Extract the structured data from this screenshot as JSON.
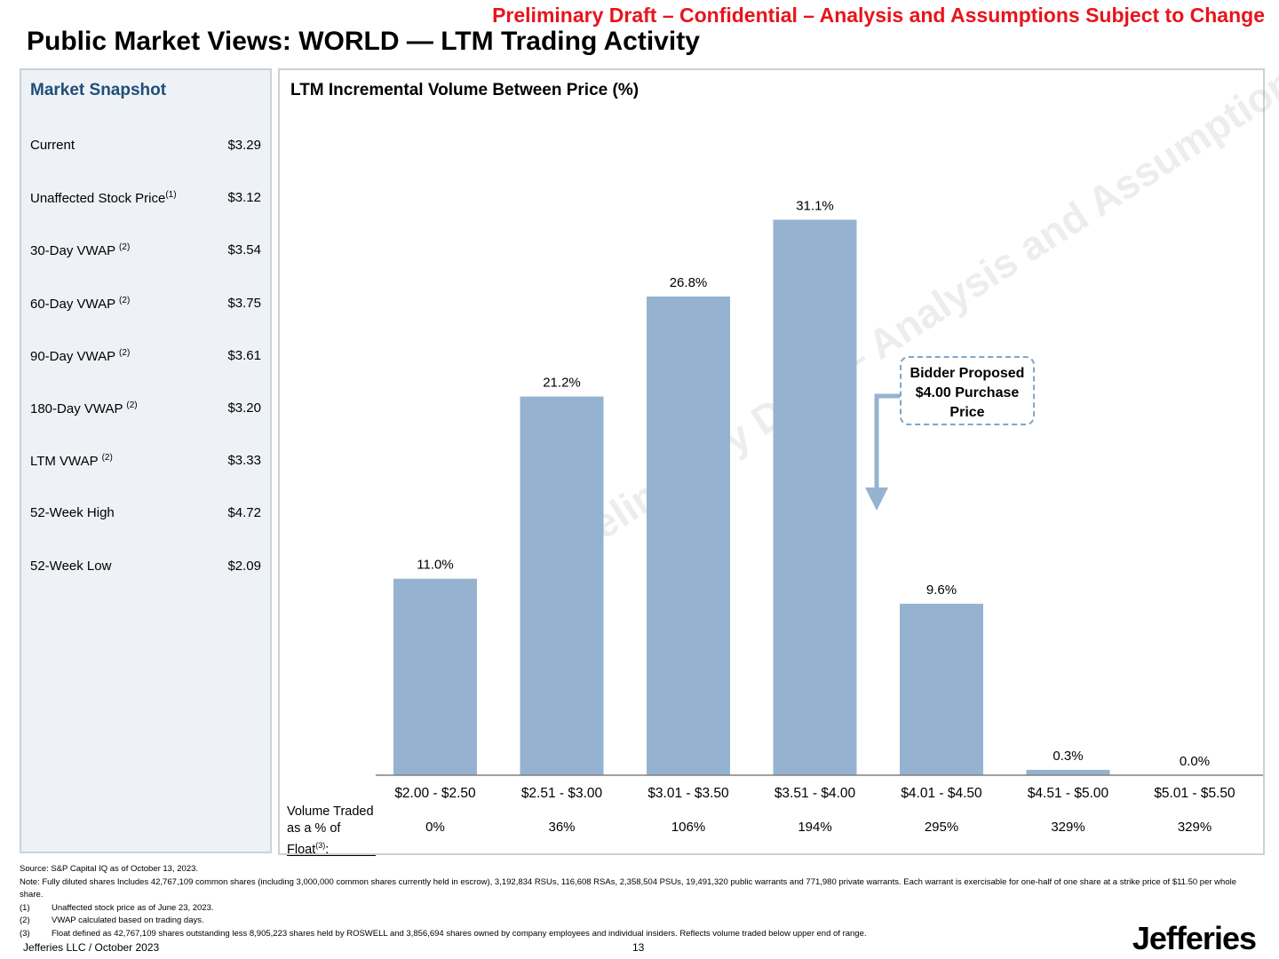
{
  "header": {
    "draft_banner": "Preliminary Draft – Confidential – Analysis and Assumptions Subject to Change",
    "title": "Public Market Views: WORLD — LTM Trading Activity"
  },
  "snapshot": {
    "title": "Market Snapshot",
    "rows": [
      {
        "label": "Current",
        "sup": "",
        "value": "$3.29"
      },
      {
        "label": "Unaffected Stock Price",
        "sup": "(1)",
        "value": "$3.12"
      },
      {
        "label": "30-Day VWAP ",
        "sup": "(2)",
        "value": "$3.54"
      },
      {
        "label": "60-Day VWAP ",
        "sup": "(2)",
        "value": "$3.75"
      },
      {
        "label": "90-Day VWAP ",
        "sup": "(2)",
        "value": "$3.61"
      },
      {
        "label": "180-Day VWAP ",
        "sup": "(2)",
        "value": "$3.20"
      },
      {
        "label": "LTM VWAP ",
        "sup": "(2)",
        "value": "$3.33"
      },
      {
        "label": "52-Week High",
        "sup": "",
        "value": "$4.72"
      },
      {
        "label": "52-Week Low",
        "sup": "",
        "value": "$2.09"
      }
    ]
  },
  "chart_data": {
    "type": "bar",
    "title": "LTM Incremental Volume Between Price (%)",
    "categories": [
      "$2.00 - $2.50",
      "$2.51 - $3.00",
      "$3.01 - $3.50",
      "$3.51 - $4.00",
      "$4.01 - $4.50",
      "$4.51 - $5.00",
      "$5.01 - $5.50"
    ],
    "values": [
      11.0,
      21.2,
      26.8,
      31.1,
      9.6,
      0.3,
      0.0
    ],
    "data_labels": [
      "11.0%",
      "21.2%",
      "26.8%",
      "31.1%",
      "9.6%",
      "0.3%",
      "0.0%"
    ],
    "ylim": [
      0,
      35
    ],
    "xlabel": "",
    "ylabel": "",
    "bar_color": "#95b3d0",
    "secondary_row": {
      "label": "Volume Traded as a % of Float",
      "label_sup": "(3)",
      "label_suffix": ":",
      "values": [
        "0%",
        "36%",
        "106%",
        "194%",
        "295%",
        "329%",
        "329%"
      ]
    },
    "annotation": {
      "line1": "Bidder Proposed",
      "line2": "$4.00 Purchase",
      "line3": "Price"
    }
  },
  "footnotes": {
    "source": "Source: S&P Capital IQ as of October 13, 2023.",
    "note": "Note: Fully diluted shares Includes 42,767,109 common shares (including 3,000,000 common shares currently held in escrow), 3,192,834 RSUs, 116,608 RSAs, 2,358,504 PSUs, 19,491,320 public warrants and 771,980 private warrants. Each warrant is exercisable for one-half of one share at a strike price of $11.50 per whole share.",
    "items": [
      {
        "num": "(1)",
        "text": "Unaffected stock price as of June 23, 2023."
      },
      {
        "num": "(2)",
        "text": "VWAP calculated based on trading days."
      },
      {
        "num": "(3)",
        "text": "Float defined as 42,767,109 shares outstanding less 8,905,223 shares held by ROSWELL and 3,856,694 shares owned by company employees and individual insiders. Reflects volume traded below upper end of range."
      }
    ]
  },
  "footer": {
    "company": "Jefferies LLC  /  October 2023",
    "page": "13",
    "logo": "Jefferies"
  },
  "watermark": "Preliminary Draft – Analysis and Assumptions Subject to Refinement/Change",
  "colors": {
    "banner": "#e8141b",
    "snapshot_title": "#1f4e79",
    "bar": "#95b3d0"
  }
}
